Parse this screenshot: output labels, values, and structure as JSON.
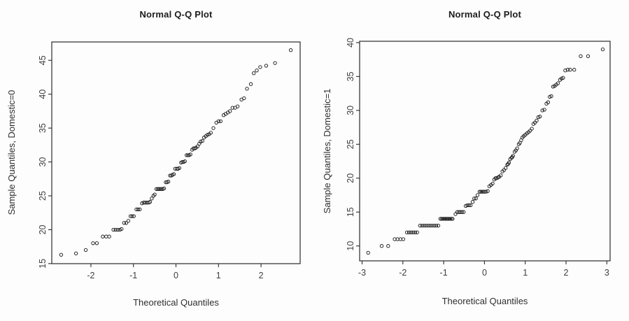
{
  "page": {
    "background": "#ffffff"
  },
  "chart_data": [
    {
      "type": "scatter",
      "title": "Normal Q-Q Plot",
      "xlabel": "Theoretical Quantiles",
      "ylabel": "Sample Quantiles, Domestic=0",
      "xlim": [
        -2.92,
        2.92
      ],
      "ylim": [
        14.99,
        47.71
      ],
      "xticks": [
        -2,
        -1,
        0,
        1,
        2
      ],
      "yticks": [
        15,
        20,
        25,
        30,
        35,
        40,
        45
      ],
      "grid": false,
      "legend": "none",
      "marker": "open-circle",
      "colors": {
        "point": "#141414",
        "box": "#2b2b2b",
        "tick_text": "#3f3f3f",
        "title_text": "#1c1c1c",
        "label_text": "#2e2e2e"
      },
      "points": [
        [
          -2.7,
          16.3
        ],
        [
          -2.35,
          16.5
        ],
        [
          -2.12,
          17.0
        ],
        [
          -1.95,
          18.0
        ],
        [
          -1.86,
          18.0
        ],
        [
          -1.72,
          19.0
        ],
        [
          -1.64,
          19.0
        ],
        [
          -1.57,
          19.0
        ],
        [
          -1.47,
          20.0
        ],
        [
          -1.42,
          20.0
        ],
        [
          -1.37,
          20.0
        ],
        [
          -1.32,
          20.0
        ],
        [
          -1.28,
          20.1
        ],
        [
          -1.22,
          21.0
        ],
        [
          -1.17,
          21.0
        ],
        [
          -1.12,
          21.3
        ],
        [
          -1.07,
          22.0
        ],
        [
          -1.03,
          22.0
        ],
        [
          -0.99,
          22.0
        ],
        [
          -0.93,
          23.0
        ],
        [
          -0.89,
          23.0
        ],
        [
          -0.85,
          23.0
        ],
        [
          -0.8,
          23.9
        ],
        [
          -0.76,
          24.0
        ],
        [
          -0.72,
          24.0
        ],
        [
          -0.68,
          24.0
        ],
        [
          -0.64,
          24.0
        ],
        [
          -0.61,
          24.1
        ],
        [
          -0.57,
          24.6
        ],
        [
          -0.53,
          25.0
        ],
        [
          -0.5,
          25.2
        ],
        [
          -0.46,
          26.0
        ],
        [
          -0.43,
          26.0
        ],
        [
          -0.4,
          26.0
        ],
        [
          -0.37,
          26.0
        ],
        [
          -0.34,
          26.0
        ],
        [
          -0.31,
          26.0
        ],
        [
          -0.28,
          26.1
        ],
        [
          -0.24,
          27.0
        ],
        [
          -0.21,
          27.0
        ],
        [
          -0.18,
          27.1
        ],
        [
          -0.14,
          28.0
        ],
        [
          -0.11,
          28.0
        ],
        [
          -0.08,
          28.1
        ],
        [
          -0.05,
          28.2
        ],
        [
          -0.02,
          29.0
        ],
        [
          0.02,
          29.0
        ],
        [
          0.05,
          29.0
        ],
        [
          0.08,
          29.1
        ],
        [
          0.12,
          29.9
        ],
        [
          0.15,
          30.0
        ],
        [
          0.18,
          30.0
        ],
        [
          0.21,
          30.1
        ],
        [
          0.25,
          31.0
        ],
        [
          0.28,
          31.0
        ],
        [
          0.31,
          31.0
        ],
        [
          0.34,
          31.1
        ],
        [
          0.38,
          31.8
        ],
        [
          0.41,
          32.0
        ],
        [
          0.44,
          32.0
        ],
        [
          0.47,
          32.1
        ],
        [
          0.51,
          32.3
        ],
        [
          0.55,
          32.7
        ],
        [
          0.58,
          33.0
        ],
        [
          0.62,
          33.1
        ],
        [
          0.66,
          33.6
        ],
        [
          0.7,
          33.8
        ],
        [
          0.74,
          34.0
        ],
        [
          0.78,
          34.1
        ],
        [
          0.82,
          34.3
        ],
        [
          0.88,
          35.0
        ],
        [
          0.95,
          35.8
        ],
        [
          1.0,
          36.0
        ],
        [
          1.05,
          36.0
        ],
        [
          1.12,
          36.9
        ],
        [
          1.17,
          37.1
        ],
        [
          1.22,
          37.3
        ],
        [
          1.27,
          37.5
        ],
        [
          1.33,
          38.0
        ],
        [
          1.39,
          38.0
        ],
        [
          1.45,
          38.2
        ],
        [
          1.54,
          39.2
        ],
        [
          1.6,
          39.4
        ],
        [
          1.67,
          40.8
        ],
        [
          1.76,
          41.5
        ],
        [
          1.83,
          43.1
        ],
        [
          1.9,
          43.5
        ],
        [
          1.98,
          44.0
        ],
        [
          2.12,
          44.2
        ],
        [
          2.33,
          44.6
        ],
        [
          2.7,
          46.5
        ]
      ]
    },
    {
      "type": "scatter",
      "title": "Normal Q-Q Plot",
      "xlabel": "Theoretical Quantiles",
      "ylabel": "Sample Quantiles, Domestic=1",
      "xlim": [
        -3.06,
        3.08
      ],
      "ylim": [
        7.8,
        40.2
      ],
      "xticks": [
        -3,
        -2,
        -1,
        0,
        1,
        2,
        3
      ],
      "yticks": [
        10,
        15,
        20,
        25,
        30,
        35,
        40
      ],
      "grid": false,
      "legend": "none",
      "marker": "open-circle",
      "colors": {
        "point": "#141414",
        "box": "#2b2b2b",
        "tick_text": "#3f3f3f",
        "title_text": "#1c1c1c",
        "label_text": "#2e2e2e"
      },
      "points": [
        [
          -2.85,
          9.0
        ],
        [
          -2.52,
          10.0
        ],
        [
          -2.36,
          10.0
        ],
        [
          -2.2,
          11.0
        ],
        [
          -2.13,
          11.0
        ],
        [
          -2.06,
          11.0
        ],
        [
          -1.99,
          11.0
        ],
        [
          -1.9,
          12.0
        ],
        [
          -1.85,
          12.0
        ],
        [
          -1.8,
          12.0
        ],
        [
          -1.75,
          12.0
        ],
        [
          -1.7,
          12.0
        ],
        [
          -1.65,
          12.0
        ],
        [
          -1.58,
          13.0
        ],
        [
          -1.53,
          13.0
        ],
        [
          -1.48,
          13.0
        ],
        [
          -1.43,
          13.0
        ],
        [
          -1.38,
          13.0
        ],
        [
          -1.33,
          13.0
        ],
        [
          -1.28,
          13.0
        ],
        [
          -1.23,
          13.0
        ],
        [
          -1.18,
          13.0
        ],
        [
          -1.13,
          13.0
        ],
        [
          -1.08,
          14.0
        ],
        [
          -1.05,
          14.0
        ],
        [
          -1.02,
          14.0
        ],
        [
          -0.99,
          14.0
        ],
        [
          -0.96,
          14.0
        ],
        [
          -0.93,
          14.0
        ],
        [
          -0.9,
          14.0
        ],
        [
          -0.87,
          14.0
        ],
        [
          -0.84,
          14.0
        ],
        [
          -0.81,
          14.0
        ],
        [
          -0.78,
          14.0
        ],
        [
          -0.71,
          14.7
        ],
        [
          -0.67,
          15.0
        ],
        [
          -0.63,
          15.0
        ],
        [
          -0.59,
          15.0
        ],
        [
          -0.55,
          15.0
        ],
        [
          -0.51,
          15.0
        ],
        [
          -0.46,
          15.9
        ],
        [
          -0.42,
          16.0
        ],
        [
          -0.38,
          16.0
        ],
        [
          -0.34,
          16.0
        ],
        [
          -0.29,
          16.5
        ],
        [
          -0.25,
          17.0
        ],
        [
          -0.21,
          17.0
        ],
        [
          -0.17,
          17.5
        ],
        [
          -0.12,
          18.0
        ],
        [
          -0.09,
          18.0
        ],
        [
          -0.06,
          18.0
        ],
        [
          -0.03,
          18.0
        ],
        [
          0.0,
          18.0
        ],
        [
          0.04,
          18.0
        ],
        [
          0.08,
          18.1
        ],
        [
          0.12,
          18.8
        ],
        [
          0.16,
          19.0
        ],
        [
          0.2,
          19.2
        ],
        [
          0.24,
          19.8
        ],
        [
          0.27,
          20.0
        ],
        [
          0.3,
          20.0
        ],
        [
          0.33,
          20.1
        ],
        [
          0.36,
          20.2
        ],
        [
          0.4,
          20.4
        ],
        [
          0.44,
          21.0
        ],
        [
          0.48,
          21.2
        ],
        [
          0.52,
          21.5
        ],
        [
          0.56,
          22.0
        ],
        [
          0.58,
          22.1
        ],
        [
          0.6,
          22.3
        ],
        [
          0.63,
          22.8
        ],
        [
          0.66,
          23.0
        ],
        [
          0.68,
          23.1
        ],
        [
          0.7,
          23.3
        ],
        [
          0.74,
          23.9
        ],
        [
          0.77,
          24.1
        ],
        [
          0.8,
          24.4
        ],
        [
          0.84,
          25.0
        ],
        [
          0.87,
          25.2
        ],
        [
          0.9,
          25.6
        ],
        [
          0.93,
          26.0
        ],
        [
          0.96,
          26.2
        ],
        [
          1.0,
          26.4
        ],
        [
          1.04,
          26.6
        ],
        [
          1.08,
          26.8
        ],
        [
          1.12,
          27.0
        ],
        [
          1.16,
          27.3
        ],
        [
          1.2,
          28.0
        ],
        [
          1.24,
          28.2
        ],
        [
          1.28,
          28.5
        ],
        [
          1.32,
          29.0
        ],
        [
          1.36,
          29.1
        ],
        [
          1.42,
          30.0
        ],
        [
          1.47,
          30.1
        ],
        [
          1.52,
          31.0
        ],
        [
          1.56,
          31.2
        ],
        [
          1.6,
          32.0
        ],
        [
          1.64,
          32.1
        ],
        [
          1.68,
          33.5
        ],
        [
          1.72,
          33.6
        ],
        [
          1.76,
          33.8
        ],
        [
          1.8,
          34.0
        ],
        [
          1.85,
          34.5
        ],
        [
          1.89,
          34.7
        ],
        [
          1.93,
          34.8
        ],
        [
          1.98,
          35.9
        ],
        [
          2.04,
          36.0
        ],
        [
          2.1,
          36.0
        ],
        [
          2.2,
          36.0
        ],
        [
          2.36,
          38.0
        ],
        [
          2.54,
          38.0
        ],
        [
          2.9,
          39.0
        ]
      ]
    }
  ]
}
